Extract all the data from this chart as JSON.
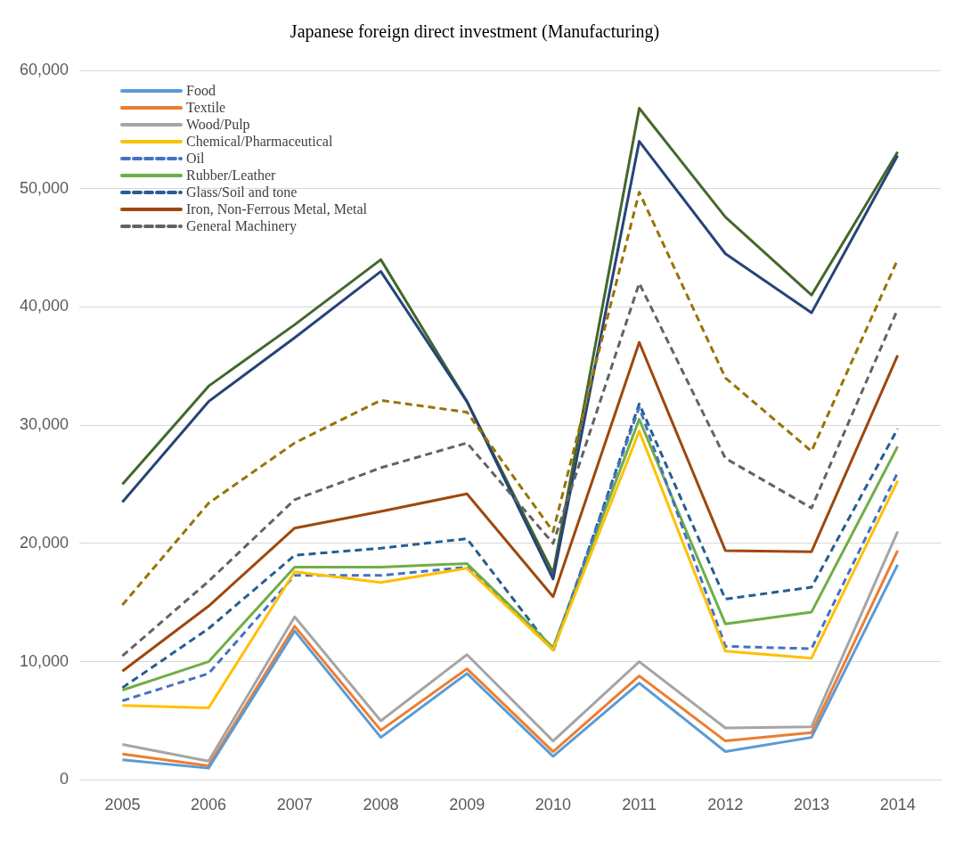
{
  "chart_data": {
    "type": "line",
    "title": "Japanese foreign direct investment (Manufacturing)",
    "categories": [
      "2005",
      "2006",
      "2007",
      "2008",
      "2009",
      "2010",
      "2011",
      "2012",
      "2013",
      "2014"
    ],
    "ylim": [
      0,
      60000
    ],
    "yticks": [
      {
        "value": 0,
        "label": "0"
      },
      {
        "value": 10000,
        "label": "10,000"
      },
      {
        "value": 20000,
        "label": "20,000"
      },
      {
        "value": 30000,
        "label": "30,000"
      },
      {
        "value": 40000,
        "label": "40,000"
      },
      {
        "value": 50000,
        "label": "50,000"
      },
      {
        "value": 60000,
        "label": "60,000"
      }
    ],
    "grid": "y",
    "legend": "top left",
    "marker": "none",
    "series": [
      {
        "name": "Food",
        "color": "#5b9bd5",
        "values": [
          1700,
          1000,
          12600,
          3600,
          9000,
          2000,
          8200,
          2400,
          3600,
          18200
        ]
      },
      {
        "name": "Textile",
        "color": "#ed7d31",
        "values": [
          2200,
          1200,
          13000,
          4200,
          9400,
          2400,
          8800,
          3300,
          4000,
          19400
        ]
      },
      {
        "name": "Wood/Pulp",
        "color": "#a5a5a5",
        "values": [
          3000,
          1600,
          13800,
          5000,
          10600,
          3300,
          10000,
          4400,
          4500,
          21000
        ]
      },
      {
        "name": "Chemical/Pharmaceutical",
        "color": "#ffc000",
        "values": [
          6300,
          6100,
          17600,
          16700,
          17900,
          11000,
          29500,
          10900,
          10300,
          25300
        ]
      },
      {
        "name": "Oil",
        "color": "#4472c4",
        "line_style": "dashed",
        "values": [
          6700,
          9000,
          17300,
          17300,
          18000,
          11000,
          31500,
          11300,
          11100,
          26000
        ]
      },
      {
        "name": "Rubber/Leather",
        "color": "#70ad47",
        "values": [
          7600,
          10000,
          18000,
          18000,
          18300,
          11200,
          30500,
          13200,
          14200,
          28200
        ]
      },
      {
        "name": "Glass/Soil and tone",
        "color": "#255e91",
        "line_style": "dashed",
        "values": [
          7800,
          12800,
          19000,
          19600,
          20400,
          10900,
          31800,
          15300,
          16300,
          29700
        ]
      },
      {
        "name": "Iron, Non-Ferrous Metal, Metal",
        "color": "#9e480e",
        "values": [
          9200,
          14700,
          21300,
          22700,
          24200,
          15500,
          37000,
          19400,
          19300,
          35900
        ]
      },
      {
        "name": "General Machinery",
        "color": "#636363",
        "line_style": "dashed",
        "values": [
          10500,
          16800,
          23700,
          26400,
          28500,
          20000,
          42000,
          27200,
          23000,
          39800
        ]
      },
      {
        "color": "#997300",
        "line_style": "dashed",
        "values": [
          14800,
          23400,
          28500,
          32100,
          31100,
          21000,
          49700,
          34000,
          27800,
          44000
        ]
      },
      {
        "color": "#264478",
        "values": [
          23500,
          32000,
          37400,
          43000,
          32000,
          17000,
          54000,
          44500,
          39500,
          52800
        ]
      },
      {
        "color": "#43682b",
        "values": [
          25000,
          33300,
          38500,
          44000,
          32000,
          17500,
          56800,
          47600,
          41000,
          53100
        ]
      }
    ]
  }
}
